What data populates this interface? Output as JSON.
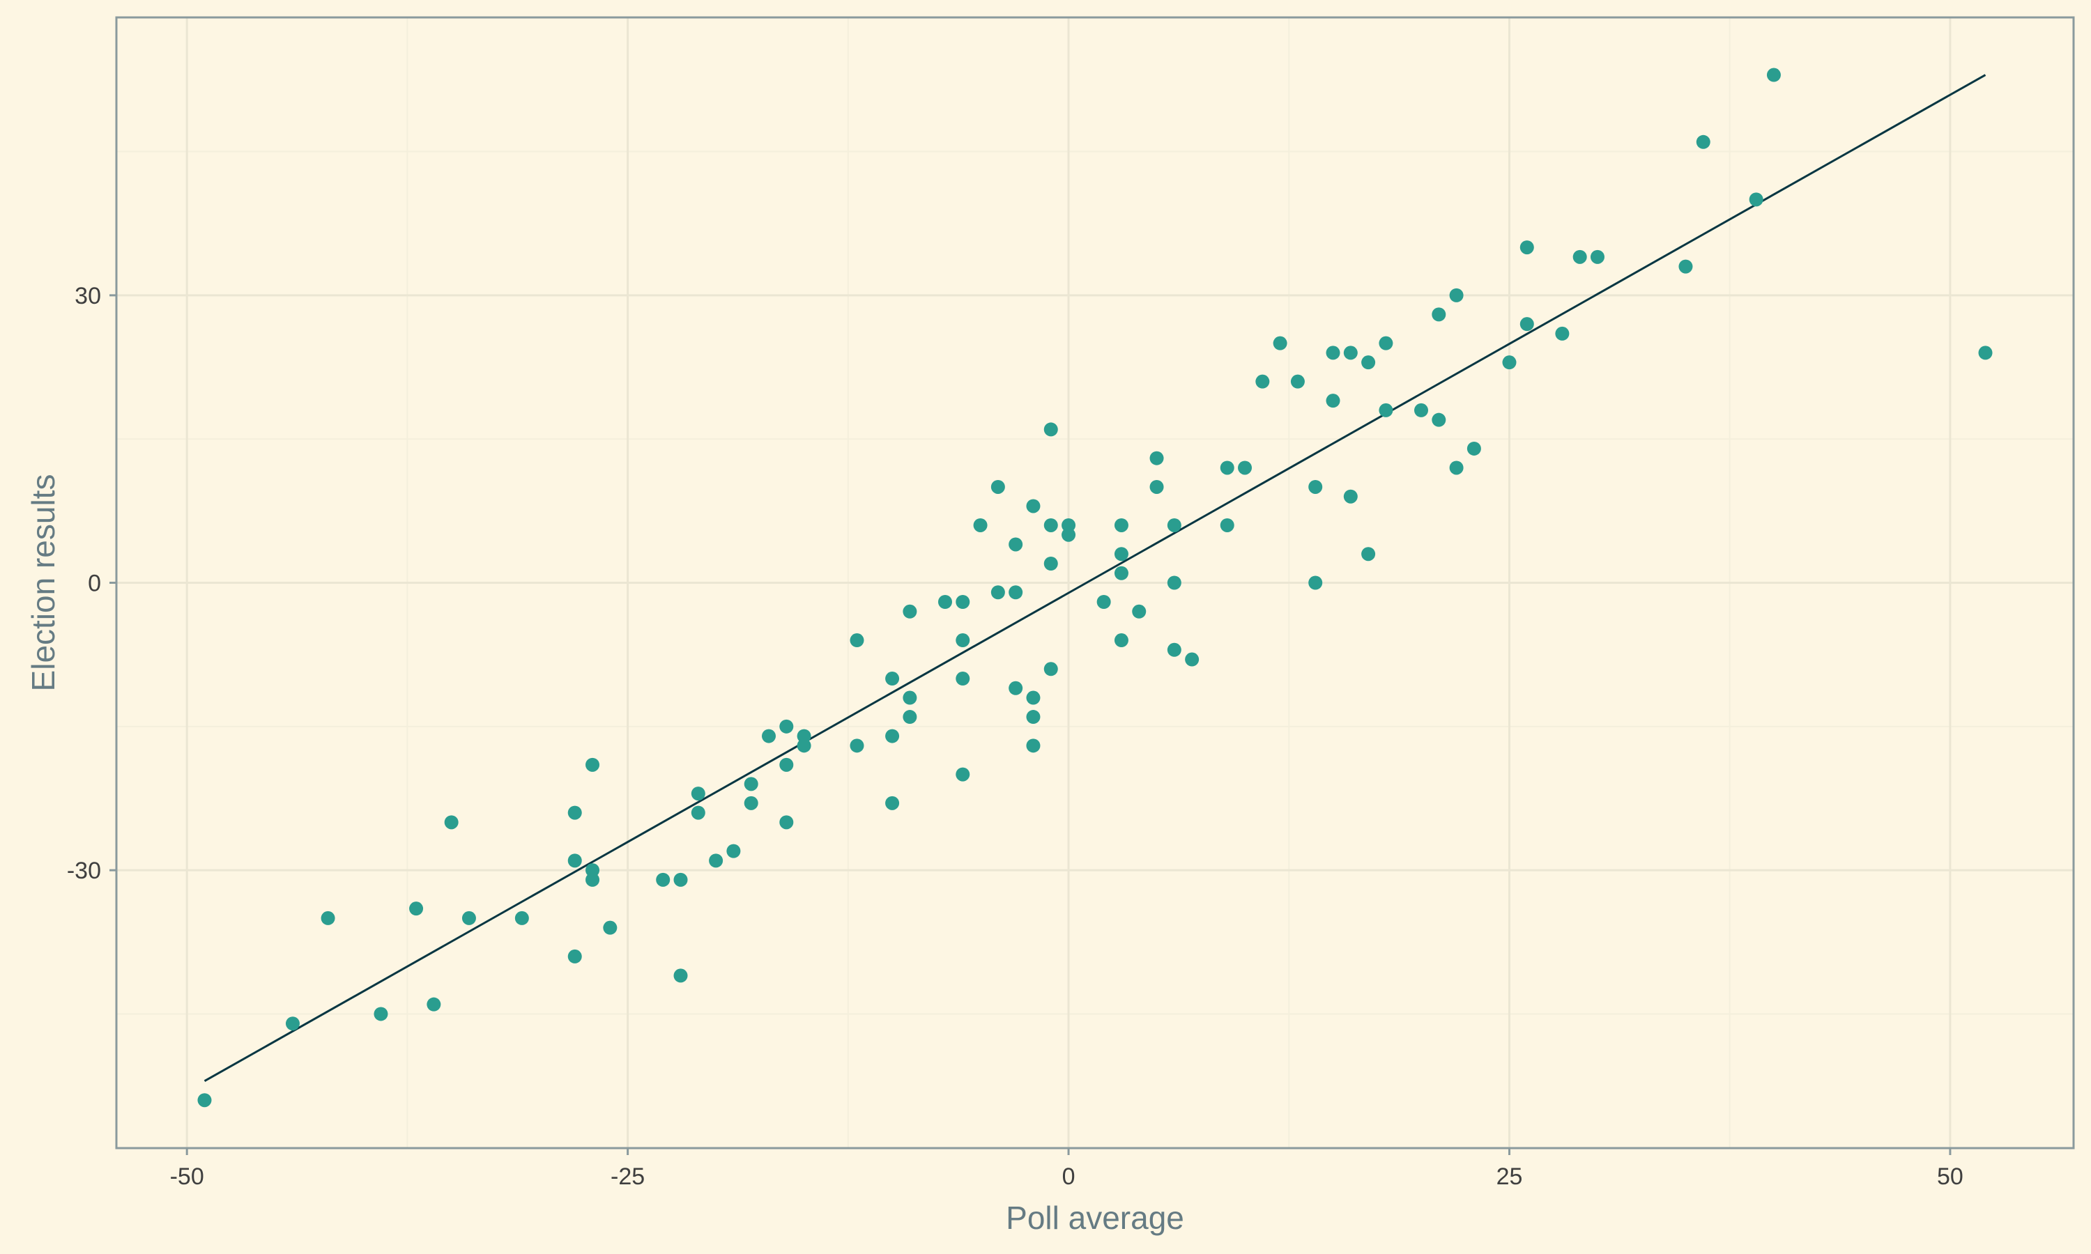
{
  "chart_data": {
    "type": "scatter",
    "title": "",
    "xlabel": "Poll average",
    "ylabel": "Election results",
    "xlim": [
      -54,
      57
    ],
    "ylim": [
      -59,
      59
    ],
    "x_ticks": [
      -50,
      -25,
      0,
      25,
      50
    ],
    "x_tick_labels": [
      "-50",
      "-25",
      "0",
      "25",
      "50"
    ],
    "y_ticks": [
      -30,
      0,
      30
    ],
    "y_tick_labels": [
      "-30",
      "0",
      "30"
    ],
    "grid": true,
    "legend": "none",
    "colors": {
      "background": "#fdf6e3",
      "grid_major": "#ebe6d3",
      "grid_minor": "#f4efdc",
      "frame": "#8a9a9d",
      "points": "#2a9d8f",
      "trend_line": "#073642"
    },
    "trend_line": {
      "x": [
        -49,
        52
      ],
      "y": [
        -52,
        53
      ]
    },
    "points": [
      {
        "x": -49,
        "y": -54
      },
      {
        "x": -44,
        "y": -46
      },
      {
        "x": -42,
        "y": -35
      },
      {
        "x": -39,
        "y": -45
      },
      {
        "x": -37,
        "y": -34
      },
      {
        "x": -36,
        "y": -44
      },
      {
        "x": -35,
        "y": -25
      },
      {
        "x": -34,
        "y": -35
      },
      {
        "x": -31,
        "y": -35
      },
      {
        "x": -28,
        "y": -24
      },
      {
        "x": -28,
        "y": -29
      },
      {
        "x": -28,
        "y": -39
      },
      {
        "x": -27,
        "y": -19
      },
      {
        "x": -27,
        "y": -30
      },
      {
        "x": -27,
        "y": -31
      },
      {
        "x": -26,
        "y": -36
      },
      {
        "x": -23,
        "y": -31
      },
      {
        "x": -22,
        "y": -31
      },
      {
        "x": -22,
        "y": -41
      },
      {
        "x": -21,
        "y": -22
      },
      {
        "x": -21,
        "y": -24
      },
      {
        "x": -20,
        "y": -29
      },
      {
        "x": -19,
        "y": -28
      },
      {
        "x": -18,
        "y": -21
      },
      {
        "x": -18,
        "y": -23
      },
      {
        "x": -17,
        "y": -16
      },
      {
        "x": -16,
        "y": -15
      },
      {
        "x": -16,
        "y": -19
      },
      {
        "x": -16,
        "y": -25
      },
      {
        "x": -15,
        "y": -16
      },
      {
        "x": -15,
        "y": -17
      },
      {
        "x": -12,
        "y": -6
      },
      {
        "x": -12,
        "y": -17
      },
      {
        "x": -10,
        "y": -10
      },
      {
        "x": -10,
        "y": -16
      },
      {
        "x": -10,
        "y": -23
      },
      {
        "x": -9,
        "y": -3
      },
      {
        "x": -9,
        "y": -12
      },
      {
        "x": -9,
        "y": -14
      },
      {
        "x": -7,
        "y": -2
      },
      {
        "x": -6,
        "y": -2
      },
      {
        "x": -6,
        "y": -6
      },
      {
        "x": -6,
        "y": -10
      },
      {
        "x": -6,
        "y": -20
      },
      {
        "x": -5,
        "y": 6
      },
      {
        "x": -4,
        "y": 10
      },
      {
        "x": -4,
        "y": -1
      },
      {
        "x": -3,
        "y": 4
      },
      {
        "x": -3,
        "y": -1
      },
      {
        "x": -3,
        "y": -11
      },
      {
        "x": -2,
        "y": 8
      },
      {
        "x": -2,
        "y": -12
      },
      {
        "x": -2,
        "y": -14
      },
      {
        "x": -2,
        "y": -17
      },
      {
        "x": -1,
        "y": 16
      },
      {
        "x": -1,
        "y": 6
      },
      {
        "x": -1,
        "y": 2
      },
      {
        "x": -1,
        "y": -9
      },
      {
        "x": 0,
        "y": 6
      },
      {
        "x": 0,
        "y": 5
      },
      {
        "x": 2,
        "y": -2
      },
      {
        "x": 3,
        "y": 6
      },
      {
        "x": 3,
        "y": 3
      },
      {
        "x": 3,
        "y": 1
      },
      {
        "x": 3,
        "y": -6
      },
      {
        "x": 4,
        "y": -3
      },
      {
        "x": 5,
        "y": 13
      },
      {
        "x": 5,
        "y": 10
      },
      {
        "x": 6,
        "y": 6
      },
      {
        "x": 6,
        "y": 0
      },
      {
        "x": 6,
        "y": -7
      },
      {
        "x": 7,
        "y": -8
      },
      {
        "x": 9,
        "y": 12
      },
      {
        "x": 9,
        "y": 6
      },
      {
        "x": 10,
        "y": 12
      },
      {
        "x": 11,
        "y": 21
      },
      {
        "x": 12,
        "y": 25
      },
      {
        "x": 13,
        "y": 21
      },
      {
        "x": 14,
        "y": 10
      },
      {
        "x": 14,
        "y": 0
      },
      {
        "x": 15,
        "y": 24
      },
      {
        "x": 15,
        "y": 19
      },
      {
        "x": 16,
        "y": 24
      },
      {
        "x": 16,
        "y": 9
      },
      {
        "x": 17,
        "y": 23
      },
      {
        "x": 17,
        "y": 3
      },
      {
        "x": 18,
        "y": 25
      },
      {
        "x": 18,
        "y": 18
      },
      {
        "x": 20,
        "y": 18
      },
      {
        "x": 21,
        "y": 28
      },
      {
        "x": 21,
        "y": 17
      },
      {
        "x": 22,
        "y": 30
      },
      {
        "x": 22,
        "y": 12
      },
      {
        "x": 23,
        "y": 14
      },
      {
        "x": 25,
        "y": 23
      },
      {
        "x": 26,
        "y": 35
      },
      {
        "x": 26,
        "y": 27
      },
      {
        "x": 28,
        "y": 26
      },
      {
        "x": 29,
        "y": 34
      },
      {
        "x": 30,
        "y": 34
      },
      {
        "x": 35,
        "y": 33
      },
      {
        "x": 36,
        "y": 46
      },
      {
        "x": 39,
        "y": 40
      },
      {
        "x": 40,
        "y": 53
      },
      {
        "x": 52,
        "y": 24
      }
    ]
  }
}
